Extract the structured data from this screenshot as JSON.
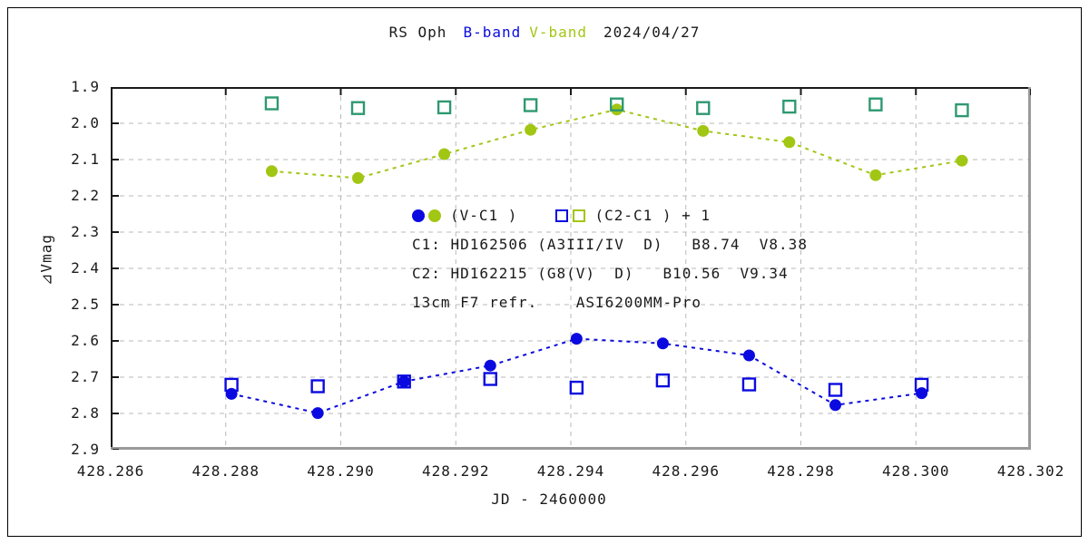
{
  "title": {
    "object": "RS Oph",
    "b_label": "B-band",
    "v_label": "V-band",
    "date": "2024/04/27"
  },
  "colors": {
    "b_band": "#0a0ae0",
    "v_band": "#a2c614",
    "v_check": "#2e9970",
    "grid": "#b9b9b9",
    "frame_dark": "#1a1a1a",
    "frame_light": "#9a9a9a",
    "text": "#1a1a1a"
  },
  "legend": {
    "series1_label": "(V-C1 )",
    "series2_label": "(C2-C1 ) + 1",
    "lines": [
      "C1: HD162506 (A3III/IV  D)   B8.74  V8.38",
      "C2: HD162215 (G8(V)  D)   B10.56  V9.34",
      "13cm F7 refr.    ASI6200MM-Pro"
    ]
  },
  "axes": {
    "x_label": "JD - 2460000",
    "y_label": "⊿Vmag"
  },
  "chart_data": {
    "type": "scatter",
    "title": "RS Oph  B-band V-band  2024/04/27",
    "xlabel": "JD - 2460000",
    "ylabel": "⊿Vmag (inverted magnitude axis, 1.9 top to 2.9 bottom)",
    "xlim": [
      428.286,
      428.302
    ],
    "ylim": [
      1.9,
      2.9
    ],
    "grid": "dashed, at every x tick and every 0.1 mag",
    "legend_position": "center of plot, text block",
    "x_ticks": [
      "428.286",
      "428.288",
      "428.290",
      "428.292",
      "428.294",
      "428.296",
      "428.298",
      "428.300",
      "428.302"
    ],
    "y_ticks": [
      "1.9",
      "2.0",
      "2.1",
      "2.2",
      "2.3",
      "2.4",
      "2.5",
      "2.6",
      "2.7",
      "2.8",
      "2.9"
    ],
    "series": [
      {
        "name": "V-band (V-C1)",
        "marker": "circle-filled",
        "color": "#a2c614",
        "line": "dashed",
        "x": [
          428.2888,
          428.2903,
          428.2918,
          428.2933,
          428.2948,
          428.2963,
          428.2978,
          428.2993,
          428.3008
        ],
        "y": [
          2.132,
          2.151,
          2.085,
          2.018,
          1.962,
          2.021,
          2.052,
          2.143,
          2.103
        ]
      },
      {
        "name": "B-band (V-C1)",
        "marker": "circle-filled",
        "color": "#0a0ae0",
        "line": "dashed",
        "x": [
          428.2881,
          428.2896,
          428.2911,
          428.2926,
          428.2941,
          428.2956,
          428.2971,
          428.2986,
          428.3001
        ],
        "y": [
          2.746,
          2.799,
          2.712,
          2.668,
          2.594,
          2.607,
          2.64,
          2.777,
          2.744
        ]
      },
      {
        "name": "B-band (C2-C1)+1",
        "marker": "square-open",
        "color": "#0a0ae0",
        "line": "none",
        "x": [
          428.2881,
          428.2896,
          428.2911,
          428.2926,
          428.2941,
          428.2956,
          428.2971,
          428.2986,
          428.3001
        ],
        "y": [
          2.721,
          2.725,
          2.712,
          2.705,
          2.729,
          2.709,
          2.72,
          2.735,
          2.721
        ]
      },
      {
        "name": "V-band (C2-C1)+1",
        "marker": "square-open",
        "color": "#2e9970",
        "line": "none",
        "x": [
          428.2888,
          428.2903,
          428.2918,
          428.2933,
          428.2948,
          428.2963,
          428.2978,
          428.2993,
          428.3008
        ],
        "y": [
          1.945,
          1.958,
          1.956,
          1.95,
          1.948,
          1.958,
          1.954,
          1.948,
          1.964
        ]
      }
    ]
  }
}
